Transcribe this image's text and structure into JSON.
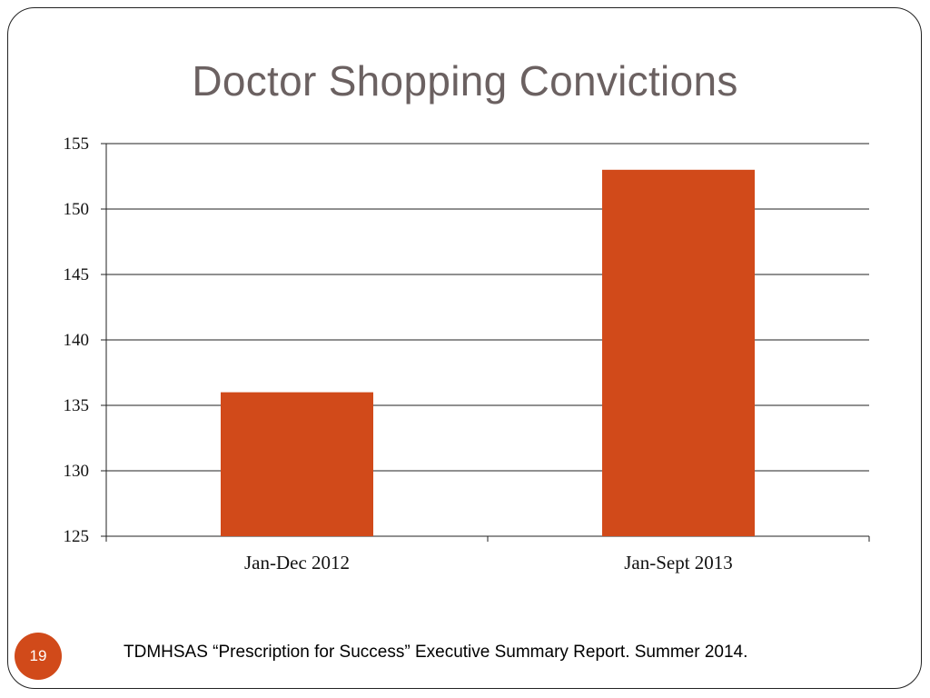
{
  "slide": {
    "title": "Doctor Shopping Convictions",
    "page_number": "19",
    "source": "TDMHSAS “Prescription for Success” Executive Summary Report. Summer 2014."
  },
  "colors": {
    "bar": "#d14a1a",
    "title": "#6b6161",
    "gridline": "#222222",
    "badge": "#d14a1a"
  },
  "chart_data": {
    "type": "bar",
    "categories": [
      "Jan-Dec 2012",
      "Jan-Sept 2013"
    ],
    "values": [
      136,
      153
    ],
    "title": "Doctor Shopping Convictions",
    "xlabel": "",
    "ylabel": "",
    "ylim": [
      125,
      155
    ],
    "yticks": [
      "125",
      "130",
      "135",
      "140",
      "145",
      "150",
      "155"
    ],
    "grid": true,
    "legend": "none"
  }
}
